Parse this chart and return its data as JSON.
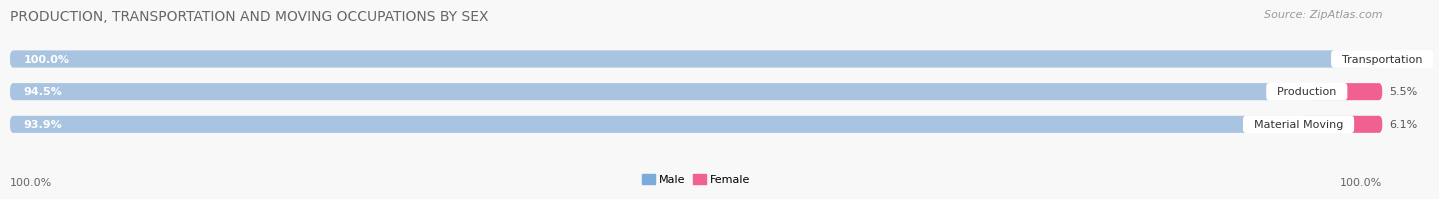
{
  "title": "PRODUCTION, TRANSPORTATION AND MOVING OCCUPATIONS BY SEX",
  "source_text": "Source: ZipAtlas.com",
  "categories": [
    "Transportation",
    "Production",
    "Material Moving"
  ],
  "male_values": [
    100.0,
    94.5,
    93.9
  ],
  "female_values": [
    0.0,
    5.5,
    6.1
  ],
  "male_color": "#a8c4e0",
  "female_color": "#f06090",
  "bar_bg_color": "#e0e0e8",
  "title_fontsize": 10,
  "label_fontsize": 8,
  "tick_fontsize": 8,
  "source_fontsize": 8,
  "legend_male_color": "#7aabda",
  "legend_female_color": "#f06090",
  "bottom_left_label": "100.0%",
  "bottom_right_label": "100.0%",
  "bg_color": "#f8f8f8"
}
